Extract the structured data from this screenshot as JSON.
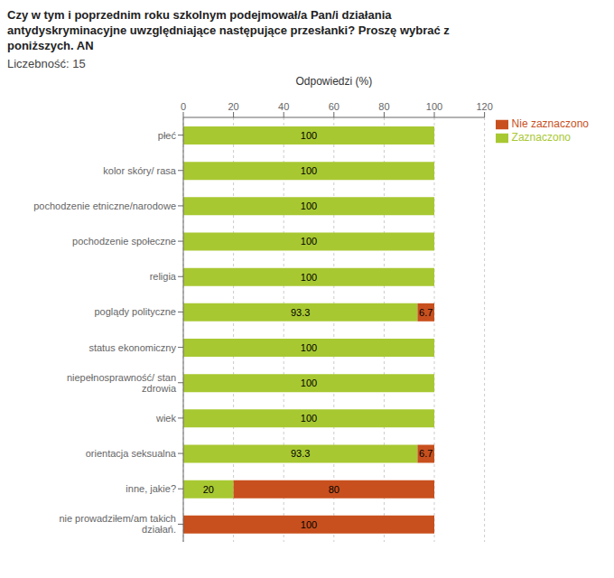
{
  "chart_data": {
    "type": "bar",
    "orientation": "horizontal",
    "stacked": true,
    "data_labels": true,
    "grid": true,
    "legend": "upper right",
    "title": "Czy w tym i poprzednim roku szkolnym podejmował/a Pan/i działania\nantydyskryminacyjne uwzględniające następujące przesłanki? Proszę wybrać z\nponiższych. AN",
    "subtitle": "Liczebność: 15",
    "xlabel": "Odpowiedzi (%)",
    "categories": [
      "płeć",
      "kolor skóry/ rasa",
      "pochodzenie etniczne/narodowe",
      "pochodzenie społeczne",
      "religia",
      "poglądy polityczne",
      "status ekonomiczny",
      "niepełnosprawność/ stan\nzdrowia",
      "wiek",
      "orientacja seksualna",
      "inne, jakie?",
      "nie prowadziłem/am takich\ndziałań."
    ],
    "series": [
      {
        "name": "Zaznaczono",
        "color": "#a8c832",
        "values": [
          100,
          100,
          100,
          100,
          100,
          93.3,
          100,
          100,
          100,
          93.3,
          20,
          0
        ]
      },
      {
        "name": "Nie zaznaczono",
        "color": "#c8501e",
        "values": [
          0,
          0,
          0,
          0,
          0,
          6.7,
          0,
          0,
          0,
          6.7,
          80,
          100
        ]
      }
    ],
    "xlim": [
      0,
      120
    ],
    "xticks": [
      0,
      20,
      40,
      60,
      80,
      100,
      120
    ]
  }
}
